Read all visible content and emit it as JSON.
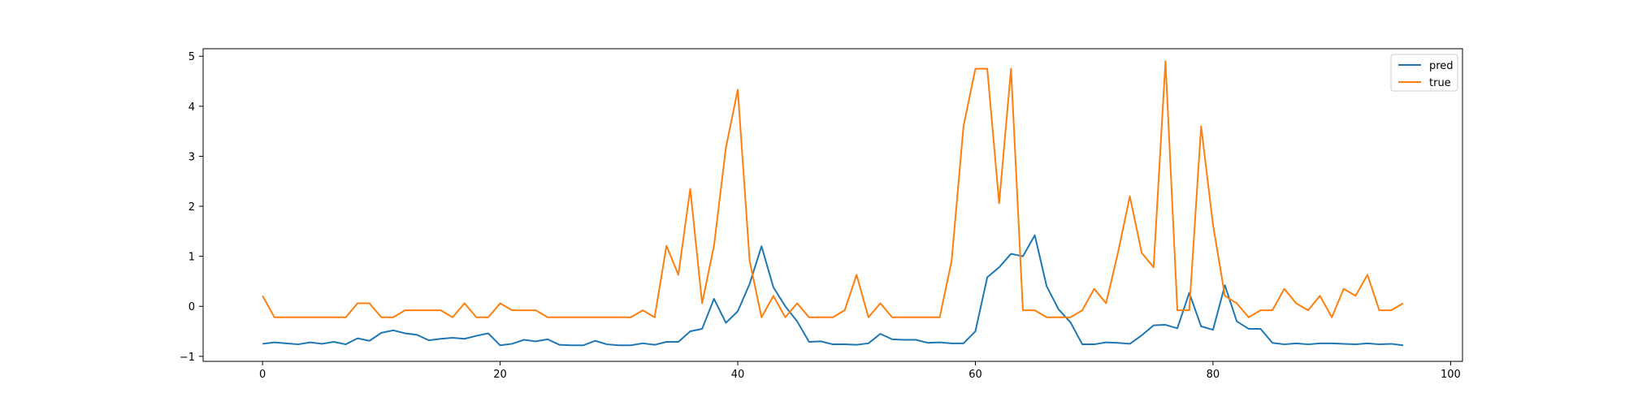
{
  "chart_data": {
    "type": "line",
    "title": "",
    "xlabel": "",
    "ylabel": "",
    "xlim": [
      -5,
      101
    ],
    "ylim": [
      -1.1,
      5.15
    ],
    "xticks": [
      0,
      20,
      40,
      60,
      80,
      100
    ],
    "yticks": [
      -1,
      0,
      1,
      2,
      3,
      4,
      5
    ],
    "grid": false,
    "legend_position": "top-right",
    "x": [
      0,
      1,
      2,
      3,
      4,
      5,
      6,
      7,
      8,
      9,
      10,
      11,
      12,
      13,
      14,
      15,
      16,
      17,
      18,
      19,
      20,
      21,
      22,
      23,
      24,
      25,
      26,
      27,
      28,
      29,
      30,
      31,
      32,
      33,
      34,
      35,
      36,
      37,
      38,
      39,
      40,
      41,
      42,
      43,
      44,
      45,
      46,
      47,
      48,
      49,
      50,
      51,
      52,
      53,
      54,
      55,
      56,
      57,
      58,
      59,
      60,
      61,
      62,
      63,
      64,
      65,
      66,
      67,
      68,
      69,
      70,
      71,
      72,
      73,
      74,
      75,
      76,
      77,
      78,
      79,
      80,
      81,
      82,
      83,
      84,
      85,
      86,
      87,
      88,
      89,
      90,
      91,
      92,
      93,
      94,
      95,
      96
    ],
    "series": [
      {
        "name": "pred",
        "color": "#1f77b4",
        "values": [
          -0.75,
          -0.72,
          -0.74,
          -0.76,
          -0.72,
          -0.75,
          -0.71,
          -0.76,
          -0.64,
          -0.69,
          -0.53,
          -0.48,
          -0.54,
          -0.57,
          -0.68,
          -0.65,
          -0.63,
          -0.65,
          -0.59,
          -0.54,
          -0.78,
          -0.75,
          -0.67,
          -0.7,
          -0.66,
          -0.77,
          -0.78,
          -0.78,
          -0.69,
          -0.76,
          -0.78,
          -0.78,
          -0.74,
          -0.77,
          -0.71,
          -0.71,
          -0.5,
          -0.45,
          0.15,
          -0.33,
          -0.1,
          0.45,
          1.2,
          0.38,
          0.0,
          -0.3,
          -0.71,
          -0.7,
          -0.76,
          -0.76,
          -0.77,
          -0.74,
          -0.55,
          -0.66,
          -0.67,
          -0.67,
          -0.73,
          -0.72,
          -0.74,
          -0.74,
          -0.5,
          0.58,
          0.78,
          1.05,
          1.0,
          1.42,
          0.4,
          -0.06,
          -0.32,
          -0.76,
          -0.76,
          -0.72,
          -0.73,
          -0.75,
          -0.58,
          -0.38,
          -0.37,
          -0.44,
          0.27,
          -0.4,
          -0.47,
          0.42,
          -0.3,
          -0.45,
          -0.45,
          -0.73,
          -0.76,
          -0.74,
          -0.76,
          -0.74,
          -0.74,
          -0.75,
          -0.76,
          -0.74,
          -0.76,
          -0.75,
          -0.78
        ]
      },
      {
        "name": "true",
        "color": "#ff7f0e",
        "values": [
          0.21,
          -0.22,
          -0.22,
          -0.22,
          -0.22,
          -0.22,
          -0.22,
          -0.22,
          0.06,
          0.06,
          -0.22,
          -0.22,
          -0.08,
          -0.08,
          -0.08,
          -0.08,
          -0.22,
          0.06,
          -0.22,
          -0.22,
          0.06,
          -0.08,
          -0.08,
          -0.08,
          -0.22,
          -0.22,
          -0.22,
          -0.22,
          -0.22,
          -0.22,
          -0.22,
          -0.22,
          -0.08,
          -0.22,
          1.21,
          0.63,
          2.35,
          0.06,
          1.21,
          3.17,
          4.33,
          0.91,
          -0.22,
          0.21,
          -0.22,
          0.06,
          -0.22,
          -0.22,
          -0.22,
          -0.08,
          0.63,
          -0.22,
          0.06,
          -0.22,
          -0.22,
          -0.22,
          -0.22,
          -0.22,
          0.91,
          3.6,
          4.75,
          4.75,
          2.06,
          4.75,
          -0.08,
          -0.08,
          -0.22,
          -0.22,
          -0.22,
          -0.08,
          0.35,
          0.06,
          1.07,
          2.2,
          1.07,
          0.78,
          4.9,
          -0.08,
          -0.08,
          3.6,
          1.63,
          0.21,
          0.06,
          -0.22,
          -0.08,
          -0.08,
          0.35,
          0.06,
          -0.08,
          0.21,
          -0.22,
          0.35,
          0.21,
          0.63,
          -0.08,
          -0.08,
          0.06
        ]
      }
    ]
  }
}
